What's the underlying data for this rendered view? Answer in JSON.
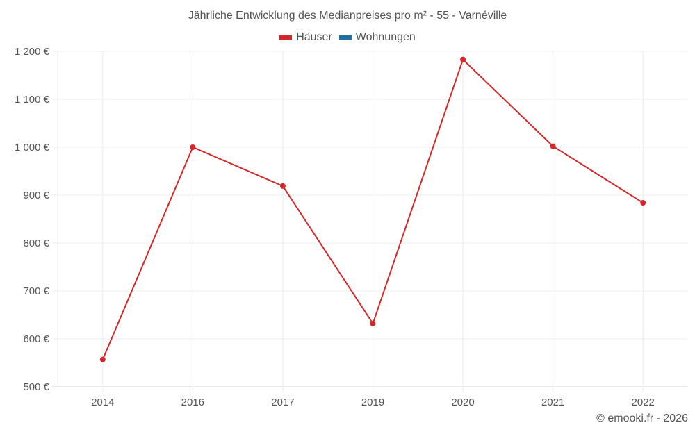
{
  "title": "Jährliche Entwicklung des Medianpreises pro m² - 55 - Varnéville",
  "legend": [
    {
      "label": "Häuser",
      "color": "#d62728"
    },
    {
      "label": "Wohnungen",
      "color": "#1f6fa8"
    }
  ],
  "credit": "© emooki.fr - 2026",
  "y_ticks": [
    "1 200 €",
    "1 100 €",
    "1 000 €",
    "900 €",
    "800 €",
    "700 €",
    "600 €",
    "500 €"
  ],
  "x_ticks": [
    "2014",
    "2016",
    "2017",
    "2019",
    "2020",
    "2021",
    "2022"
  ],
  "chart_data": {
    "type": "line",
    "title": "Jährliche Entwicklung des Medianpreises pro m² - 55 - Varnéville",
    "xlabel": "",
    "ylabel": "",
    "categories": [
      "2014",
      "2016",
      "2017",
      "2019",
      "2020",
      "2021",
      "2022"
    ],
    "series": [
      {
        "name": "Häuser",
        "color": "#d62728",
        "values": [
          557,
          1000,
          919,
          632,
          1183,
          1002,
          884
        ]
      },
      {
        "name": "Wohnungen",
        "color": "#1f6fa8",
        "values": []
      }
    ],
    "ylim": [
      500,
      1200
    ],
    "y_tick_step": 100,
    "grid": true,
    "legend_position": "top"
  }
}
